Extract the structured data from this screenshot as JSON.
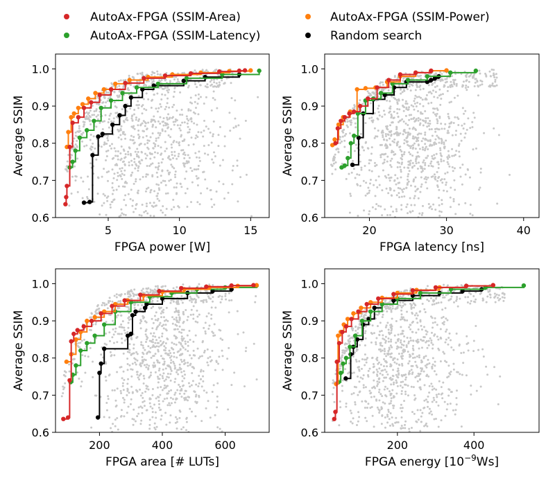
{
  "legend": {
    "placement": "top",
    "entries": [
      {
        "label": "AutoAx-FPGA (SSIM-Area)",
        "color": "#d62728"
      },
      {
        "label": "AutoAx-FPGA (SSIM-Power)",
        "color": "#ff7f0e"
      },
      {
        "label": "AutoAx-FPGA (SSIM-Latency)",
        "color": "#2ca02c"
      },
      {
        "label": "Random search",
        "color": "#000000"
      }
    ]
  },
  "colors": {
    "area": "#d62728",
    "power": "#ff7f0e",
    "latency": "#2ca02c",
    "random": "#000000",
    "background_points": "#c8c8c8"
  },
  "chart_data": [
    {
      "type": "scatter",
      "xlabel": "FPGA power [W]",
      "ylabel": "Average SSIM",
      "xlim": [
        1.3,
        16.3
      ],
      "ylim": [
        0.6,
        1.04
      ],
      "xticks": [
        5,
        10,
        15
      ],
      "yticks": [
        0.6,
        0.7,
        0.8,
        0.9,
        1.0
      ],
      "grid": false,
      "background_cloud": {
        "x_center": 7.5,
        "x_spread": 3.0,
        "y_center": 0.8,
        "y_spread": 0.12,
        "x_min": 2.0,
        "x_max": 15.8
      },
      "series": [
        {
          "key": "area",
          "x": [
            2.0,
            2.05,
            2.1,
            2.3,
            2.5,
            2.9,
            3.3,
            3.8,
            4.4,
            5.2,
            6.2,
            7.5,
            9.0,
            10.8,
            12.8,
            14.2,
            14.6
          ],
          "y": [
            0.636,
            0.655,
            0.685,
            0.79,
            0.855,
            0.87,
            0.895,
            0.91,
            0.93,
            0.945,
            0.962,
            0.975,
            0.982,
            0.988,
            0.993,
            0.995,
            0.996
          ]
        },
        {
          "key": "power",
          "x": [
            2.1,
            2.2,
            2.4,
            2.6,
            2.9,
            3.2,
            3.6,
            4.1,
            4.7,
            5.5,
            6.5,
            7.8,
            9.5,
            11.5,
            13.5,
            15.0
          ],
          "y": [
            0.79,
            0.83,
            0.87,
            0.88,
            0.895,
            0.905,
            0.92,
            0.935,
            0.945,
            0.96,
            0.97,
            0.978,
            0.985,
            0.99,
            0.994,
            0.996
          ]
        },
        {
          "key": "latency",
          "x": [
            2.3,
            2.5,
            2.7,
            3.0,
            3.5,
            4.0,
            4.5,
            5.2,
            6.0,
            7.0,
            8.5,
            10.5,
            13.0,
            15.6
          ],
          "y": [
            0.735,
            0.75,
            0.78,
            0.815,
            0.835,
            0.86,
            0.895,
            0.915,
            0.935,
            0.95,
            0.96,
            0.975,
            0.985,
            0.995
          ]
        },
        {
          "key": "random",
          "x": [
            3.3,
            3.7,
            3.9,
            4.3,
            4.6,
            5.3,
            5.8,
            6.2,
            6.6,
            7.4,
            8.2,
            10.3,
            11.8,
            14.2
          ],
          "y": [
            0.64,
            0.642,
            0.768,
            0.818,
            0.825,
            0.85,
            0.875,
            0.9,
            0.923,
            0.945,
            0.955,
            0.968,
            0.978,
            0.985
          ]
        }
      ]
    },
    {
      "type": "scatter",
      "xlabel": "FPGA latency [ns]",
      "ylabel": "Average SSIM",
      "xlim": [
        14.2,
        42.0
      ],
      "ylim": [
        0.6,
        1.04
      ],
      "xticks": [
        20,
        30,
        40
      ],
      "yticks": [
        0.6,
        0.7,
        0.8,
        0.9,
        1.0
      ],
      "grid": false,
      "background_cloud": {
        "x_center": 25.5,
        "x_spread": 4.0,
        "y_center": 0.8,
        "y_spread": 0.12,
        "x_min": 15.0,
        "x_max": 40.5
      },
      "series": [
        {
          "key": "area",
          "x": [
            15.6,
            15.9,
            16.3,
            16.8,
            17.4,
            18.0,
            18.8,
            19.8,
            21.0,
            22.5,
            24.0,
            26.0,
            28.0
          ],
          "y": [
            0.8,
            0.84,
            0.86,
            0.87,
            0.88,
            0.885,
            0.9,
            0.92,
            0.95,
            0.97,
            0.985,
            0.99,
            0.995
          ]
        },
        {
          "key": "power",
          "x": [
            15.2,
            15.5,
            16.0,
            16.6,
            17.5,
            18.4,
            19.5,
            20.8,
            22.3,
            24.0,
            26.0,
            28.0,
            30.0
          ],
          "y": [
            0.795,
            0.81,
            0.85,
            0.87,
            0.885,
            0.945,
            0.948,
            0.95,
            0.965,
            0.98,
            0.99,
            0.995,
            0.996
          ]
        },
        {
          "key": "latency",
          "x": [
            16.4,
            16.8,
            17.2,
            17.6,
            18.0,
            18.5,
            19.5,
            20.5,
            21.5,
            23.0,
            25.0,
            27.5,
            30.5,
            33.8
          ],
          "y": [
            0.735,
            0.74,
            0.76,
            0.8,
            0.82,
            0.88,
            0.915,
            0.92,
            0.935,
            0.96,
            0.97,
            0.98,
            0.99,
            0.995
          ]
        },
        {
          "key": "random",
          "x": [
            17.8,
            18.6,
            19.2,
            20.5,
            22.0,
            23.2,
            24.8,
            27.5,
            28.0,
            28.5,
            29.0
          ],
          "y": [
            0.742,
            0.815,
            0.88,
            0.918,
            0.93,
            0.95,
            0.965,
            0.965,
            0.97,
            0.975,
            0.98
          ]
        }
      ]
    },
    {
      "type": "scatter",
      "xlabel": "FPGA area [# LUTs]",
      "ylabel": "Average SSIM",
      "xlim": [
        60,
        740
      ],
      "ylim": [
        0.6,
        1.04
      ],
      "xticks": [
        200,
        400,
        600
      ],
      "yticks": [
        0.6,
        0.7,
        0.8,
        0.9,
        1.0
      ],
      "grid": false,
      "background_cloud": {
        "x_center": 390,
        "x_spread": 110,
        "y_center": 0.8,
        "y_spread": 0.12,
        "x_min": 80,
        "x_max": 720
      },
      "series": [
        {
          "key": "area",
          "x": [
            85,
            100,
            105,
            110,
            118,
            130,
            150,
            175,
            205,
            240,
            280,
            330,
            390,
            460,
            540,
            620,
            690
          ],
          "y": [
            0.636,
            0.64,
            0.74,
            0.845,
            0.865,
            0.875,
            0.885,
            0.9,
            0.92,
            0.94,
            0.955,
            0.97,
            0.98,
            0.988,
            0.992,
            0.995,
            0.996
          ]
        },
        {
          "key": "power",
          "x": [
            95,
            110,
            125,
            140,
            160,
            185,
            215,
            250,
            290,
            340,
            400,
            470,
            550,
            640,
            700
          ],
          "y": [
            0.79,
            0.81,
            0.85,
            0.87,
            0.9,
            0.91,
            0.925,
            0.945,
            0.955,
            0.968,
            0.978,
            0.985,
            0.99,
            0.994,
            0.996
          ]
        },
        {
          "key": "latency",
          "x": [
            108,
            115,
            125,
            140,
            160,
            185,
            215,
            250,
            300,
            360,
            430,
            510,
            600,
            700
          ],
          "y": [
            0.735,
            0.755,
            0.78,
            0.82,
            0.84,
            0.86,
            0.89,
            0.925,
            0.95,
            0.965,
            0.975,
            0.985,
            0.99,
            0.995
          ]
        },
        {
          "key": "random",
          "x": [
            195,
            200,
            205,
            215,
            290,
            300,
            305,
            315,
            345,
            350,
            400,
            480,
            560,
            620
          ],
          "y": [
            0.64,
            0.76,
            0.785,
            0.825,
            0.86,
            0.865,
            0.915,
            0.925,
            0.935,
            0.945,
            0.96,
            0.975,
            0.98,
            0.985
          ]
        }
      ]
    },
    {
      "type": "scatter",
      "xlabel": "FPGA energy [10",
      "xlabel_exp": "−9",
      "xlabel_tail": "Ws]",
      "ylabel": "Average SSIM",
      "xlim": [
        10,
        570
      ],
      "ylim": [
        0.6,
        1.04
      ],
      "xticks": [
        200,
        400
      ],
      "yticks": [
        0.6,
        0.7,
        0.8,
        0.9,
        1.0
      ],
      "grid": false,
      "background_cloud": {
        "x_center": 205,
        "x_spread": 85,
        "y_center": 0.79,
        "y_spread": 0.12,
        "x_min": 30,
        "x_max": 560
      },
      "series": [
        {
          "key": "area",
          "x": [
            35,
            38,
            42,
            48,
            56,
            66,
            80,
            98,
            120,
            150,
            190,
            240,
            300,
            380,
            450
          ],
          "y": [
            0.636,
            0.655,
            0.79,
            0.84,
            0.87,
            0.885,
            0.905,
            0.925,
            0.945,
            0.96,
            0.972,
            0.982,
            0.99,
            0.994,
            0.996
          ]
        },
        {
          "key": "power",
          "x": [
            40,
            45,
            52,
            60,
            70,
            85,
            105,
            130,
            160,
            200,
            250,
            310,
            380,
            450
          ],
          "y": [
            0.73,
            0.86,
            0.87,
            0.89,
            0.905,
            0.92,
            0.935,
            0.95,
            0.962,
            0.975,
            0.983,
            0.99,
            0.994,
            0.996
          ]
        },
        {
          "key": "latency",
          "x": [
            46,
            52,
            58,
            66,
            76,
            90,
            108,
            130,
            160,
            200,
            260,
            340,
            430,
            530
          ],
          "y": [
            0.735,
            0.76,
            0.785,
            0.8,
            0.83,
            0.86,
            0.9,
            0.925,
            0.945,
            0.96,
            0.975,
            0.985,
            0.99,
            0.995
          ]
        },
        {
          "key": "random",
          "x": [
            65,
            78,
            85,
            95,
            110,
            125,
            140,
            160,
            190,
            240,
            310,
            370,
            420
          ],
          "y": [
            0.745,
            0.81,
            0.83,
            0.85,
            0.89,
            0.905,
            0.935,
            0.945,
            0.955,
            0.968,
            0.975,
            0.98,
            0.985
          ]
        }
      ]
    }
  ]
}
